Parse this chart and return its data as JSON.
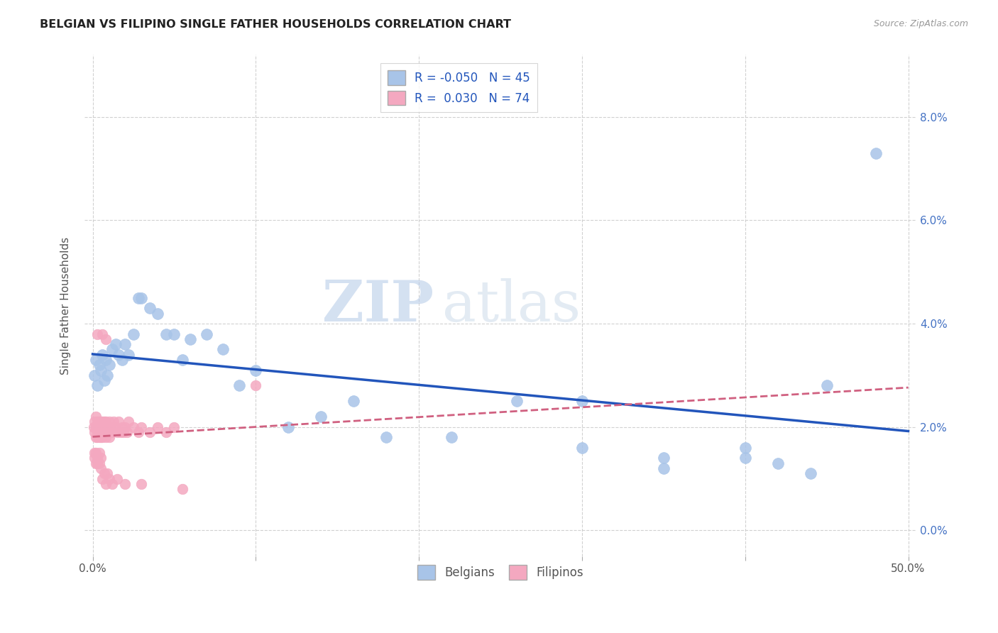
{
  "title": "BELGIAN VS FILIPINO SINGLE FATHER HOUSEHOLDS CORRELATION CHART",
  "source": "Source: ZipAtlas.com",
  "ylabel": "Single Father Households",
  "xlim": [
    -0.005,
    0.505
  ],
  "ylim": [
    -0.005,
    0.092
  ],
  "y_tick_vals": [
    0.0,
    0.02,
    0.04,
    0.06,
    0.08
  ],
  "x_tick_vals": [
    0.0,
    0.1,
    0.2,
    0.3,
    0.4,
    0.5
  ],
  "belgian_color": "#a8c4e8",
  "filipino_color": "#f4a8c0",
  "trendline_belgian_color": "#2255bb",
  "trendline_filipino_color": "#d06080",
  "watermark_zip": "ZIP",
  "watermark_atlas": "atlas",
  "legend_R_belgian": "R = -0.050",
  "legend_N_belgian": "N = 45",
  "legend_R_filipino": "R =  0.030",
  "legend_N_filipino": "N = 74",
  "belgians_label": "Belgians",
  "filipinos_label": "Filipinos",
  "belgian_scatter_x": [
    0.001,
    0.002,
    0.003,
    0.004,
    0.005,
    0.006,
    0.007,
    0.008,
    0.009,
    0.01,
    0.012,
    0.014,
    0.016,
    0.018,
    0.02,
    0.022,
    0.025,
    0.028,
    0.03,
    0.035,
    0.04,
    0.045,
    0.05,
    0.055,
    0.06,
    0.07,
    0.08,
    0.09,
    0.1,
    0.12,
    0.14,
    0.16,
    0.18,
    0.22,
    0.26,
    0.3,
    0.35,
    0.4,
    0.42,
    0.44,
    0.3,
    0.35,
    0.4,
    0.45,
    0.48
  ],
  "belgian_scatter_y": [
    0.03,
    0.033,
    0.028,
    0.032,
    0.031,
    0.034,
    0.029,
    0.033,
    0.03,
    0.032,
    0.035,
    0.036,
    0.034,
    0.033,
    0.036,
    0.034,
    0.038,
    0.045,
    0.045,
    0.043,
    0.042,
    0.038,
    0.038,
    0.033,
    0.037,
    0.038,
    0.035,
    0.028,
    0.031,
    0.02,
    0.022,
    0.025,
    0.018,
    0.018,
    0.025,
    0.025,
    0.014,
    0.014,
    0.013,
    0.011,
    0.016,
    0.012,
    0.016,
    0.028,
    0.073
  ],
  "filipino_scatter_x": [
    0.0005,
    0.001,
    0.001,
    0.002,
    0.002,
    0.002,
    0.003,
    0.003,
    0.003,
    0.003,
    0.004,
    0.004,
    0.004,
    0.004,
    0.005,
    0.005,
    0.005,
    0.005,
    0.006,
    0.006,
    0.006,
    0.006,
    0.007,
    0.007,
    0.008,
    0.008,
    0.008,
    0.009,
    0.009,
    0.01,
    0.01,
    0.011,
    0.012,
    0.013,
    0.014,
    0.015,
    0.016,
    0.017,
    0.018,
    0.019,
    0.02,
    0.021,
    0.022,
    0.025,
    0.028,
    0.03,
    0.035,
    0.04,
    0.045,
    0.05,
    0.001,
    0.001,
    0.002,
    0.002,
    0.003,
    0.003,
    0.004,
    0.004,
    0.005,
    0.005,
    0.006,
    0.007,
    0.008,
    0.009,
    0.01,
    0.012,
    0.015,
    0.02,
    0.03,
    0.055,
    0.003,
    0.006,
    0.008,
    0.1
  ],
  "filipino_scatter_y": [
    0.02,
    0.019,
    0.021,
    0.018,
    0.02,
    0.022,
    0.019,
    0.021,
    0.018,
    0.02,
    0.019,
    0.021,
    0.018,
    0.02,
    0.019,
    0.021,
    0.018,
    0.02,
    0.019,
    0.021,
    0.018,
    0.02,
    0.019,
    0.021,
    0.019,
    0.021,
    0.018,
    0.02,
    0.019,
    0.021,
    0.018,
    0.02,
    0.019,
    0.021,
    0.02,
    0.019,
    0.021,
    0.019,
    0.02,
    0.019,
    0.02,
    0.019,
    0.021,
    0.02,
    0.019,
    0.02,
    0.019,
    0.02,
    0.019,
    0.02,
    0.015,
    0.014,
    0.013,
    0.015,
    0.014,
    0.013,
    0.015,
    0.013,
    0.012,
    0.014,
    0.01,
    0.011,
    0.009,
    0.011,
    0.01,
    0.009,
    0.01,
    0.009,
    0.009,
    0.008,
    0.038,
    0.038,
    0.037,
    0.028
  ]
}
